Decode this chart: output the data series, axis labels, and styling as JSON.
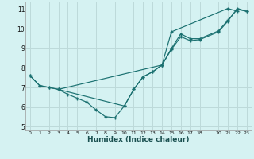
{
  "xlabel": "Humidex (Indice chaleur)",
  "bg_color": "#d5f2f2",
  "grid_color": "#bddada",
  "line_color": "#1a7070",
  "xlim": [
    -0.5,
    23.5
  ],
  "ylim": [
    4.8,
    11.4
  ],
  "xticks": [
    0,
    1,
    2,
    3,
    4,
    5,
    6,
    7,
    8,
    9,
    10,
    11,
    12,
    13,
    14,
    15,
    16,
    17,
    18,
    20,
    21,
    22,
    23
  ],
  "yticks": [
    5,
    6,
    7,
    8,
    9,
    10,
    11
  ],
  "line1_x": [
    0,
    1,
    2,
    3,
    4,
    5,
    6,
    7,
    8,
    9,
    10,
    11,
    12,
    13,
    14,
    15,
    16,
    17,
    18,
    20,
    21,
    22,
    23
  ],
  "line1_y": [
    7.6,
    7.1,
    7.0,
    6.9,
    6.65,
    6.45,
    6.25,
    5.85,
    5.5,
    5.45,
    6.05,
    6.9,
    7.55,
    7.8,
    8.15,
    9.0,
    9.75,
    9.5,
    9.5,
    9.9,
    10.45,
    11.0,
    10.9
  ],
  "line2_x": [
    0,
    1,
    2,
    3,
    10,
    11,
    12,
    13,
    14,
    15,
    16,
    17,
    18,
    20,
    21,
    22,
    23
  ],
  "line2_y": [
    7.6,
    7.1,
    7.0,
    6.9,
    6.05,
    6.9,
    7.55,
    7.8,
    8.15,
    8.95,
    9.6,
    9.4,
    9.45,
    9.85,
    10.4,
    11.05,
    10.9
  ],
  "line3_x": [
    3,
    14,
    15,
    21,
    22
  ],
  "line3_y": [
    6.9,
    8.15,
    9.85,
    11.05,
    10.9
  ]
}
